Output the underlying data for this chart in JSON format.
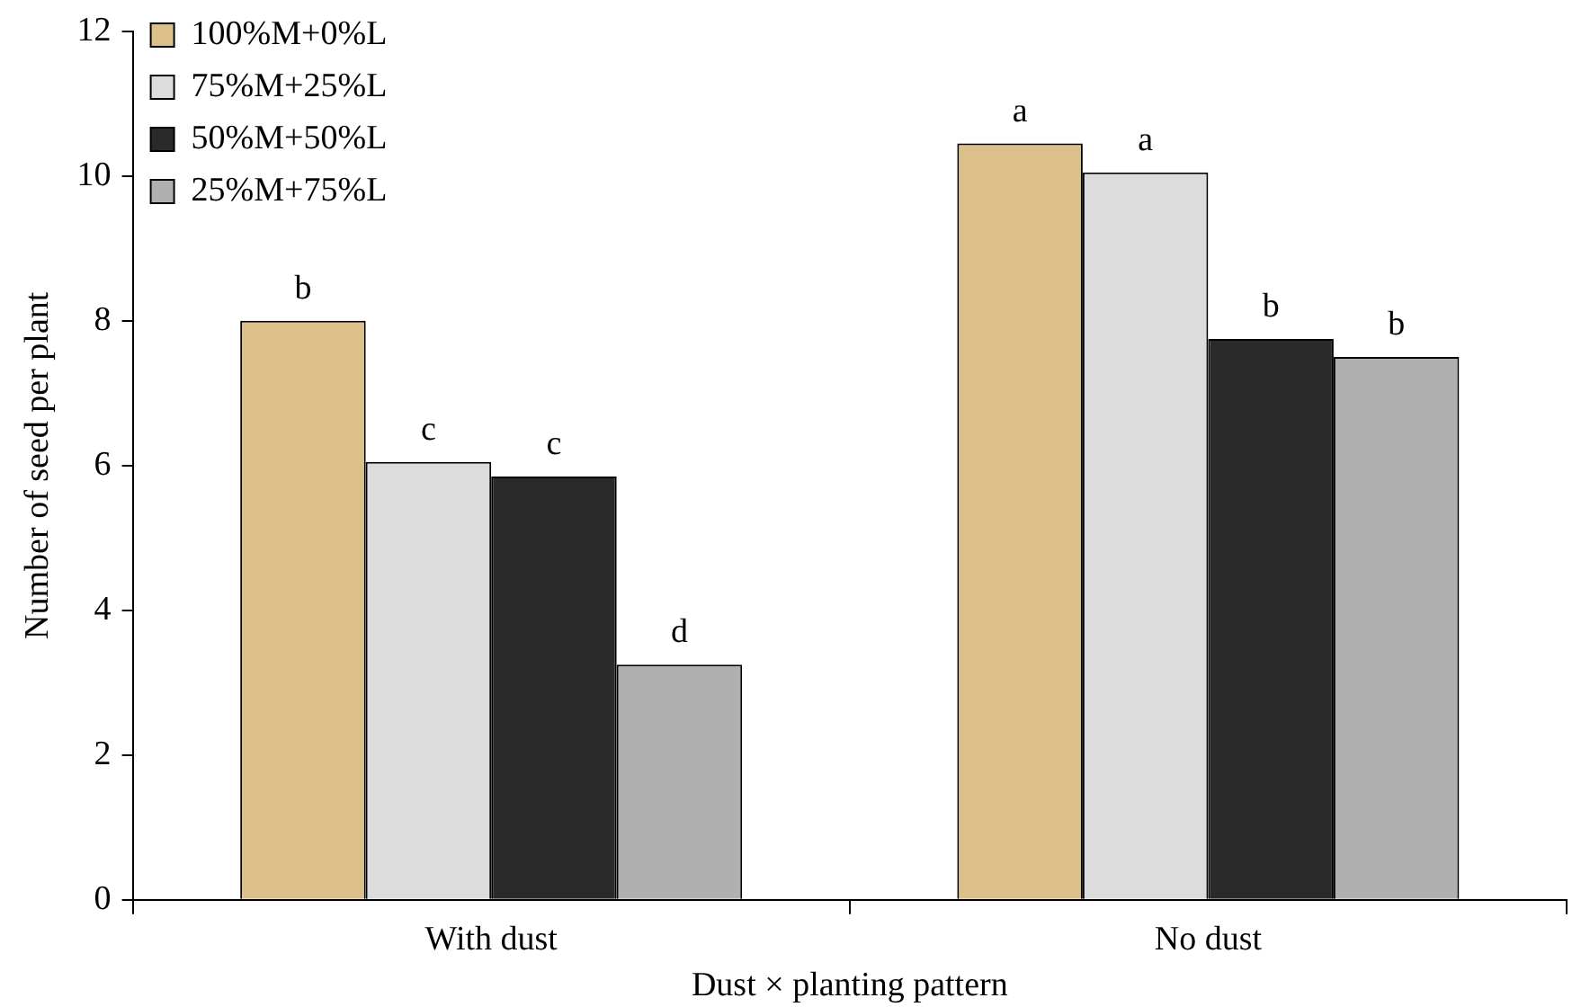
{
  "chart_data": {
    "type": "bar",
    "xlabel": "Dust × planting pattern",
    "ylabel": "Number of seed per plant",
    "categories": [
      "With dust",
      "No dust"
    ],
    "series": [
      {
        "name": "100%M+0%L",
        "color": "#dcc08a",
        "values": [
          8.0,
          10.45
        ],
        "value_labels": [
          "b",
          "a"
        ]
      },
      {
        "name": "75%M+25%L",
        "color": "#dcdcdc",
        "values": [
          6.05,
          10.05
        ],
        "value_labels": [
          "c",
          "a"
        ]
      },
      {
        "name": "50%M+50%L",
        "color": "#2a2a2a",
        "values": [
          5.85,
          7.75
        ],
        "value_labels": [
          "c",
          "b"
        ]
      },
      {
        "name": "25%M+75%L",
        "color": "#b0b0b0",
        "values": [
          3.25,
          7.5
        ],
        "value_labels": [
          "d",
          "b"
        ]
      }
    ],
    "ylim": [
      0,
      12
    ],
    "yticks": [
      0,
      2,
      4,
      6,
      8,
      10,
      12
    ],
    "grid": false,
    "legend": "top left"
  }
}
